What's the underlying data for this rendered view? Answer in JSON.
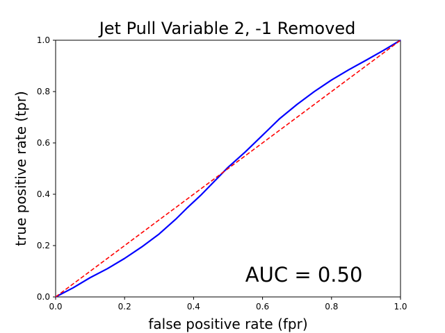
{
  "chart_data": {
    "type": "line",
    "title": "Jet Pull Variable 2, -1 Removed",
    "xlabel": "false positive rate (fpr)",
    "ylabel": "true positive rate (tpr)",
    "xlim": [
      0.0,
      1.0
    ],
    "ylim": [
      0.0,
      1.0
    ],
    "xticks": [
      "0.0",
      "0.2",
      "0.4",
      "0.6",
      "0.8",
      "1.0"
    ],
    "yticks": [
      "0.0",
      "0.2",
      "0.4",
      "0.6",
      "0.8",
      "1.0"
    ],
    "grid": false,
    "series": [
      {
        "color": "#0000ff",
        "style": "solid",
        "x": [
          0.0,
          0.05,
          0.1,
          0.15,
          0.2,
          0.25,
          0.3,
          0.35,
          0.38,
          0.42,
          0.46,
          0.5,
          0.55,
          0.6,
          0.65,
          0.7,
          0.75,
          0.8,
          0.85,
          0.9,
          0.95,
          1.0
        ],
        "y": [
          0.0,
          0.035,
          0.075,
          0.11,
          0.15,
          0.195,
          0.245,
          0.305,
          0.345,
          0.395,
          0.45,
          0.505,
          0.565,
          0.63,
          0.695,
          0.75,
          0.8,
          0.845,
          0.885,
          0.922,
          0.96,
          1.0
        ]
      },
      {
        "color": "#ff0000",
        "style": "dashed",
        "x": [
          0.0,
          1.0
        ],
        "y": [
          0.0,
          1.0
        ]
      }
    ],
    "annotations": [
      {
        "text": "AUC = 0.50",
        "x": 0.55,
        "y": 0.06
      }
    ]
  }
}
